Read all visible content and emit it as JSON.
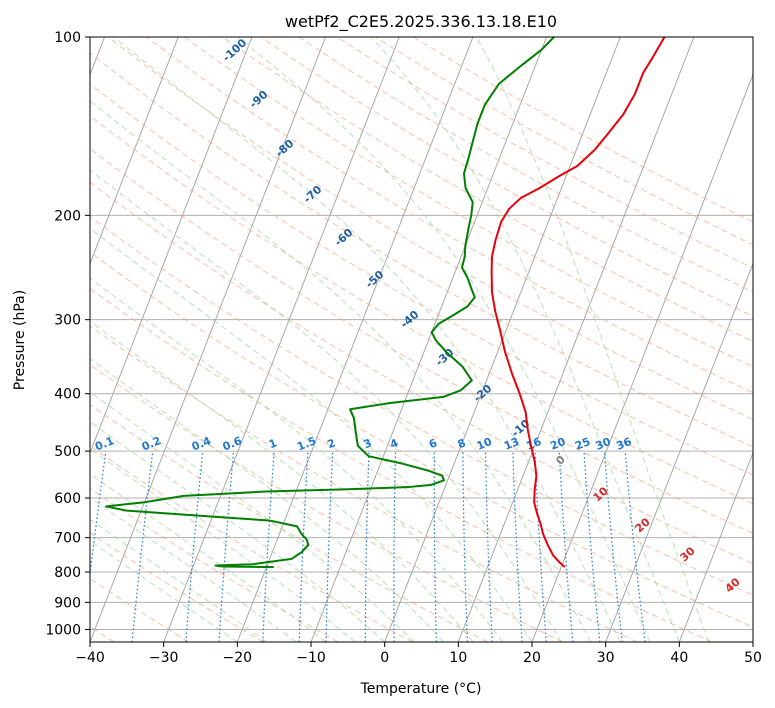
{
  "chart_data": {
    "type": "skew-t",
    "title": "wetPf2_C2E5.2025.336.13.18.E10",
    "xlabel": "Temperature (°C)",
    "ylabel": "Pressure (hPa)",
    "xlim": [
      -40,
      50
    ],
    "ylim_hPa": [
      1050,
      100
    ],
    "x_ticks": [
      "−40",
      "−30",
      "−20",
      "−10",
      "0",
      "10",
      "20",
      "30",
      "40",
      "50"
    ],
    "y_ticks": [
      "100",
      "200",
      "300",
      "400",
      "500",
      "600",
      "700",
      "800",
      "900",
      "1000"
    ],
    "dry_adiabat_labels_C": [
      "-100",
      "-90",
      "-80",
      "-70",
      "-60",
      "-50",
      "-40",
      "-30",
      "-20",
      "-10",
      "0",
      "10",
      "20",
      "30",
      "40"
    ],
    "mixing_ratio_labels_gkg": [
      "0.1",
      "0.2",
      "0.4",
      "0.6",
      "1",
      "1.5",
      "2",
      "3",
      "4",
      "6",
      "8",
      "10",
      "13",
      "16",
      "20",
      "25",
      "30",
      "36"
    ],
    "colors": {
      "temperature": "#e8000b",
      "dewpoint": "#008000",
      "isotherm": "#a0a0a0",
      "dry_adiabat": "#f4a582",
      "moist_adiabat": "#a6d9a6",
      "mixing_ratio": "#1f77d4",
      "label_blue": "#1f5fa8",
      "label_red": "#d62728"
    },
    "series": [
      {
        "name": "temperature",
        "points": [
          [
            785,
            20.5
          ],
          [
            770,
            19.5
          ],
          [
            750,
            18.3
          ],
          [
            720,
            17
          ],
          [
            690,
            15.8
          ],
          [
            660,
            14.8
          ],
          [
            640,
            14
          ],
          [
            610,
            12.9
          ],
          [
            580,
            12.3
          ],
          [
            550,
            11.8
          ],
          [
            520,
            10.8
          ],
          [
            490,
            9.5
          ],
          [
            460,
            8.2
          ],
          [
            430,
            7
          ],
          [
            400,
            5.2
          ],
          [
            370,
            3.1
          ],
          [
            340,
            1
          ],
          [
            310,
            -1
          ],
          [
            290,
            -2.5
          ],
          [
            270,
            -3.9
          ],
          [
            250,
            -5
          ],
          [
            235,
            -5.8
          ],
          [
            220,
            -6.2
          ],
          [
            205,
            -6.4
          ],
          [
            195,
            -6
          ],
          [
            187,
            -5
          ],
          [
            180,
            -3
          ],
          [
            172,
            -1
          ],
          [
            165,
            1
          ],
          [
            155,
            2.5
          ],
          [
            145,
            3.5
          ],
          [
            135,
            4.5
          ],
          [
            125,
            5
          ],
          [
            115,
            5
          ],
          [
            108,
            5.5
          ],
          [
            100,
            6
          ]
        ]
      },
      {
        "name": "dewpoint",
        "points": [
          [
            785,
            -19
          ],
          [
            783,
            -26
          ],
          [
            780,
            -27
          ],
          [
            776,
            -22
          ],
          [
            760,
            -17
          ],
          [
            740,
            -16
          ],
          [
            720,
            -15.5
          ],
          [
            705,
            -16
          ],
          [
            690,
            -17
          ],
          [
            670,
            -18
          ],
          [
            655,
            -22
          ],
          [
            645,
            -30
          ],
          [
            630,
            -42
          ],
          [
            620,
            -45
          ],
          [
            610,
            -40
          ],
          [
            595,
            -35
          ],
          [
            585,
            -24
          ],
          [
            580,
            -13
          ],
          [
            575,
            -5
          ],
          [
            570,
            -2
          ],
          [
            560,
            -0.5
          ],
          [
            550,
            -1
          ],
          [
            540,
            -3
          ],
          [
            525,
            -7
          ],
          [
            510,
            -12
          ],
          [
            490,
            -14
          ],
          [
            465,
            -15
          ],
          [
            440,
            -16
          ],
          [
            425,
            -17
          ],
          [
            415,
            -12
          ],
          [
            405,
            -5
          ],
          [
            395,
            -3
          ],
          [
            380,
            -2
          ],
          [
            360,
            -4
          ],
          [
            340,
            -7
          ],
          [
            325,
            -9
          ],
          [
            315,
            -10
          ],
          [
            305,
            -9.5
          ],
          [
            295,
            -8
          ],
          [
            285,
            -6.5
          ],
          [
            275,
            -6
          ],
          [
            265,
            -7
          ],
          [
            255,
            -8
          ],
          [
            245,
            -9.3
          ],
          [
            235,
            -9.5
          ],
          [
            225,
            -10
          ],
          [
            210,
            -10.5
          ],
          [
            200,
            -10.8
          ],
          [
            190,
            -11.3
          ],
          [
            180,
            -13
          ],
          [
            170,
            -14
          ],
          [
            160,
            -14.2
          ],
          [
            150,
            -14.5
          ],
          [
            140,
            -14.8
          ],
          [
            130,
            -14.8
          ],
          [
            120,
            -14
          ],
          [
            112,
            -12
          ],
          [
            105,
            -10
          ],
          [
            100,
            -9
          ]
        ]
      }
    ]
  }
}
